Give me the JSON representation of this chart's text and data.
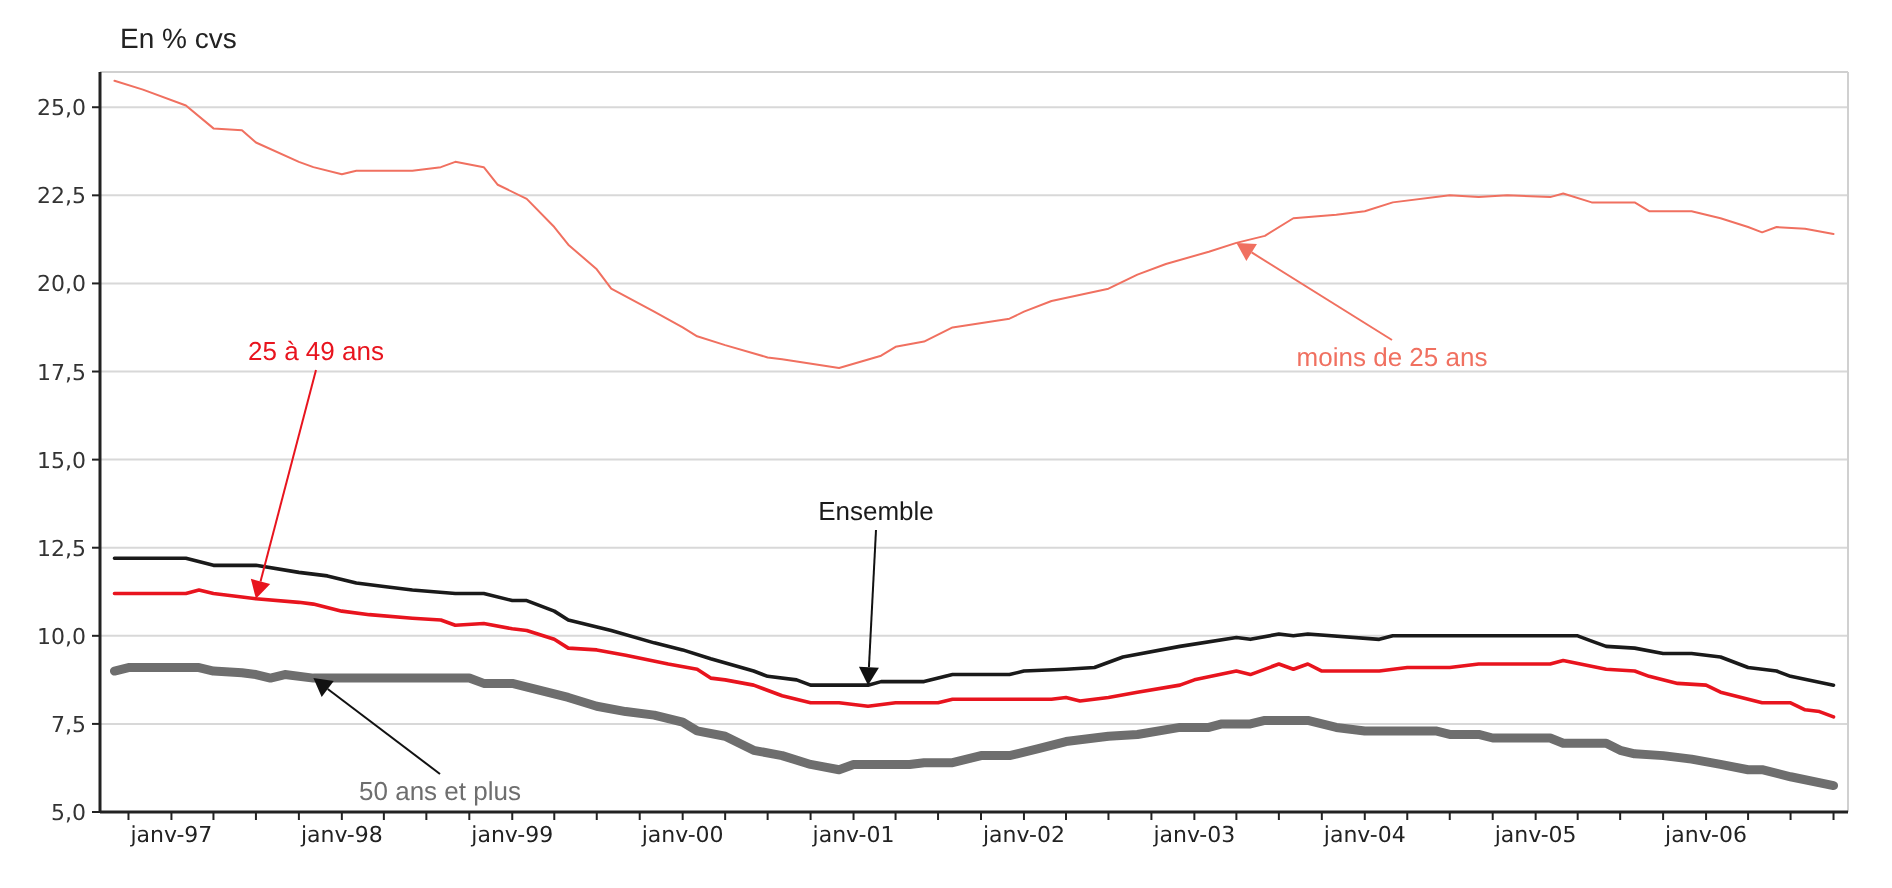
{
  "chart_data": {
    "type": "line",
    "ylabel": "En % cvs",
    "xlim": [
      "1996-08",
      "2006-11"
    ],
    "xticks": [
      {
        "value": "1996-10",
        "label": null
      },
      {
        "value": "1997-01",
        "label": "janv-97"
      },
      {
        "value": "1997-04",
        "label": null
      },
      {
        "value": "1997-07",
        "label": null
      },
      {
        "value": "1997-10",
        "label": null
      },
      {
        "value": "1998-01",
        "label": "janv-98"
      },
      {
        "value": "1998-04",
        "label": null
      },
      {
        "value": "1998-07",
        "label": null
      },
      {
        "value": "1998-10",
        "label": null
      },
      {
        "value": "1999-01",
        "label": "janv-99"
      },
      {
        "value": "1999-04",
        "label": null
      },
      {
        "value": "1999-07",
        "label": null
      },
      {
        "value": "1999-10",
        "label": null
      },
      {
        "value": "2000-01",
        "label": "janv-00"
      },
      {
        "value": "2000-04",
        "label": null
      },
      {
        "value": "2000-07",
        "label": null
      },
      {
        "value": "2000-10",
        "label": null
      },
      {
        "value": "2001-01",
        "label": "janv-01"
      },
      {
        "value": "2001-04",
        "label": null
      },
      {
        "value": "2001-07",
        "label": null
      },
      {
        "value": "2001-10",
        "label": null
      },
      {
        "value": "2002-01",
        "label": "janv-02"
      },
      {
        "value": "2002-04",
        "label": null
      },
      {
        "value": "2002-07",
        "label": null
      },
      {
        "value": "2002-10",
        "label": null
      },
      {
        "value": "2003-01",
        "label": "janv-03"
      },
      {
        "value": "2003-04",
        "label": null
      },
      {
        "value": "2003-07",
        "label": null
      },
      {
        "value": "2003-10",
        "label": null
      },
      {
        "value": "2004-01",
        "label": "janv-04"
      },
      {
        "value": "2004-04",
        "label": null
      },
      {
        "value": "2004-07",
        "label": null
      },
      {
        "value": "2004-10",
        "label": null
      },
      {
        "value": "2005-01",
        "label": "janv-05"
      },
      {
        "value": "2005-04",
        "label": null
      },
      {
        "value": "2005-07",
        "label": null
      },
      {
        "value": "2005-10",
        "label": null
      },
      {
        "value": "2006-01",
        "label": "janv-06"
      },
      {
        "value": "2006-04",
        "label": null
      },
      {
        "value": "2006-07",
        "label": null
      },
      {
        "value": "2006-10",
        "label": null
      }
    ],
    "ylim": [
      5,
      26
    ],
    "yticks": [
      {
        "value": 5,
        "label": "5,0"
      },
      {
        "value": 7.5,
        "label": "7,5"
      },
      {
        "value": 10,
        "label": "10,0"
      },
      {
        "value": 12.5,
        "label": "12,5"
      },
      {
        "value": 15,
        "label": "15,0"
      },
      {
        "value": 17.5,
        "label": "17,5"
      },
      {
        "value": 20,
        "label": "20,0"
      },
      {
        "value": 22.5,
        "label": "22,5"
      },
      {
        "value": 25,
        "label": "25,0"
      }
    ],
    "grid": "y",
    "legend": false,
    "marker": "none",
    "line_style": "solid",
    "series": [
      {
        "name": "moins de 25 ans",
        "color": "#f07060",
        "x": [
          "1996-09",
          "1996-11",
          "1997-02",
          "1997-04",
          "1997-06",
          "1997-07",
          "1997-10",
          "1997-11",
          "1998-01",
          "1998-02",
          "1998-06",
          "1998-08",
          "1998-09",
          "1998-11",
          "1998-12",
          "1999-02",
          "1999-04",
          "1999-05",
          "1999-07",
          "1999-08",
          "1999-11",
          "2000-01",
          "2000-02",
          "2000-04",
          "2000-07",
          "2000-08",
          "2000-12",
          "2001-03",
          "2001-04",
          "2001-06",
          "2001-08",
          "2001-12",
          "2002-01",
          "2002-03",
          "2002-07",
          "2002-09",
          "2002-11",
          "2003-02",
          "2003-04",
          "2003-06",
          "2003-08",
          "2003-11",
          "2004-01",
          "2004-03",
          "2004-07",
          "2004-09",
          "2004-11",
          "2005-02",
          "2005-03",
          "2005-05",
          "2005-08",
          "2005-09",
          "2005-12",
          "2006-02",
          "2006-04",
          "2006-05",
          "2006-06",
          "2006-08",
          "2006-10"
        ],
        "values": [
          25.75,
          25.5,
          25.05,
          24.4,
          24.35,
          24.0,
          23.45,
          23.3,
          23.1,
          23.2,
          23.2,
          23.3,
          23.45,
          23.3,
          22.8,
          22.4,
          21.6,
          21.1,
          20.4,
          19.85,
          19.2,
          18.75,
          18.5,
          18.25,
          17.9,
          17.85,
          17.6,
          17.95,
          18.2,
          18.35,
          18.75,
          19.0,
          19.2,
          19.5,
          19.85,
          20.25,
          20.55,
          20.9,
          21.15,
          21.35,
          21.85,
          21.95,
          22.05,
          22.3,
          22.5,
          22.45,
          22.5,
          22.45,
          22.55,
          22.3,
          22.3,
          22.05,
          22.05,
          21.85,
          21.6,
          21.45,
          21.6,
          21.55,
          21.4
        ]
      },
      {
        "name": "25 à 49 ans",
        "color": "#e8141e",
        "x": [
          "1996-09",
          "1997-02",
          "1997-03",
          "1997-04",
          "1997-06",
          "1997-07",
          "1997-10",
          "1997-11",
          "1998-01",
          "1998-03",
          "1998-06",
          "1998-08",
          "1998-09",
          "1998-11",
          "1999-01",
          "1999-02",
          "1999-04",
          "1999-05",
          "1999-07",
          "1999-09",
          "1999-12",
          "2000-02",
          "2000-03",
          "2000-04",
          "2000-06",
          "2000-08",
          "2000-10",
          "2000-12",
          "2001-02",
          "2001-04",
          "2001-07",
          "2001-08",
          "2002-03",
          "2002-04",
          "2002-05",
          "2002-07",
          "2002-09",
          "2002-12",
          "2003-01",
          "2003-04",
          "2003-05",
          "2003-07",
          "2003-08",
          "2003-09",
          "2003-10",
          "2004-02",
          "2004-04",
          "2004-07",
          "2004-09",
          "2005-02",
          "2005-03",
          "2005-06",
          "2005-08",
          "2005-09",
          "2005-11",
          "2006-01",
          "2006-02",
          "2006-05",
          "2006-07",
          "2006-08",
          "2006-09",
          "2006-10"
        ],
        "values": [
          11.2,
          11.2,
          11.3,
          11.2,
          11.1,
          11.05,
          10.95,
          10.9,
          10.7,
          10.6,
          10.5,
          10.45,
          10.3,
          10.35,
          10.2,
          10.15,
          9.9,
          9.65,
          9.6,
          9.45,
          9.2,
          9.05,
          8.8,
          8.75,
          8.6,
          8.3,
          8.1,
          8.1,
          8.0,
          8.1,
          8.1,
          8.2,
          8.2,
          8.25,
          8.15,
          8.25,
          8.4,
          8.6,
          8.75,
          9.0,
          8.9,
          9.2,
          9.05,
          9.2,
          9.0,
          9.0,
          9.1,
          9.1,
          9.2,
          9.2,
          9.3,
          9.05,
          9.0,
          8.85,
          8.65,
          8.6,
          8.4,
          8.1,
          8.1,
          7.9,
          7.85,
          7.7
        ]
      },
      {
        "name": "Ensemble",
        "color": "#1a1a1a",
        "x": [
          "1996-09",
          "1997-02",
          "1997-04",
          "1997-07",
          "1997-10",
          "1997-12",
          "1998-02",
          "1998-04",
          "1998-06",
          "1998-09",
          "1998-11",
          "1999-01",
          "1999-02",
          "1999-04",
          "1999-05",
          "1999-08",
          "1999-11",
          "2000-01",
          "2000-03",
          "2000-06",
          "2000-07",
          "2000-09",
          "2000-10",
          "2001-02",
          "2001-03",
          "2001-06",
          "2001-08",
          "2001-12",
          "2002-01",
          "2002-04",
          "2002-06",
          "2002-08",
          "2002-12",
          "2003-04",
          "2003-05",
          "2003-07",
          "2003-08",
          "2003-09",
          "2004-02",
          "2004-03",
          "2005-04",
          "2005-05",
          "2005-06",
          "2005-08",
          "2005-10",
          "2005-12",
          "2006-02",
          "2006-04",
          "2006-06",
          "2006-07",
          "2006-10"
        ],
        "values": [
          12.2,
          12.2,
          12.0,
          12.0,
          11.8,
          11.7,
          11.5,
          11.4,
          11.3,
          11.2,
          11.2,
          11.0,
          11.0,
          10.7,
          10.45,
          10.15,
          9.8,
          9.6,
          9.35,
          9.0,
          8.85,
          8.75,
          8.6,
          8.6,
          8.7,
          8.7,
          8.9,
          8.9,
          9.0,
          9.05,
          9.1,
          9.4,
          9.7,
          9.95,
          9.9,
          10.05,
          10.0,
          10.05,
          9.9,
          10.0,
          10.0,
          9.85,
          9.7,
          9.65,
          9.5,
          9.5,
          9.4,
          9.1,
          9.0,
          8.85,
          8.6
        ]
      },
      {
        "name": "50 ans et plus",
        "color": "#6e6e6e",
        "x": [
          "1996-09",
          "1996-10",
          "1997-03",
          "1997-04",
          "1997-06",
          "1997-07",
          "1997-08",
          "1997-09",
          "1997-11",
          "1998-10",
          "1998-11",
          "1999-01",
          "1999-05",
          "1999-07",
          "1999-09",
          "1999-11",
          "2000-01",
          "2000-02",
          "2000-04",
          "2000-06",
          "2000-08",
          "2000-10",
          "2000-12",
          "2001-01",
          "2001-05",
          "2001-06",
          "2001-08",
          "2001-10",
          "2001-12",
          "2002-02",
          "2002-04",
          "2002-05",
          "2002-07",
          "2002-09",
          "2002-12",
          "2003-02",
          "2003-03",
          "2003-05",
          "2003-06",
          "2003-09",
          "2003-11",
          "2004-01",
          "2004-06",
          "2004-07",
          "2004-09",
          "2004-10",
          "2005-02",
          "2005-03",
          "2005-06",
          "2005-07",
          "2005-08",
          "2005-10",
          "2005-12",
          "2006-02",
          "2006-04",
          "2006-05",
          "2006-07",
          "2006-10"
        ],
        "values": [
          9.0,
          9.1,
          9.1,
          9.0,
          8.95,
          8.9,
          8.8,
          8.9,
          8.8,
          8.8,
          8.65,
          8.65,
          8.25,
          8.0,
          7.85,
          7.75,
          7.55,
          7.3,
          7.15,
          6.75,
          6.6,
          6.35,
          6.2,
          6.35,
          6.35,
          6.4,
          6.4,
          6.6,
          6.6,
          6.8,
          7.0,
          7.05,
          7.15,
          7.2,
          7.4,
          7.4,
          7.5,
          7.5,
          7.6,
          7.6,
          7.4,
          7.3,
          7.3,
          7.2,
          7.2,
          7.1,
          7.1,
          6.95,
          6.95,
          6.75,
          6.65,
          6.6,
          6.5,
          6.35,
          6.2,
          6.2,
          6.0,
          5.75
        ]
      }
    ]
  }
}
